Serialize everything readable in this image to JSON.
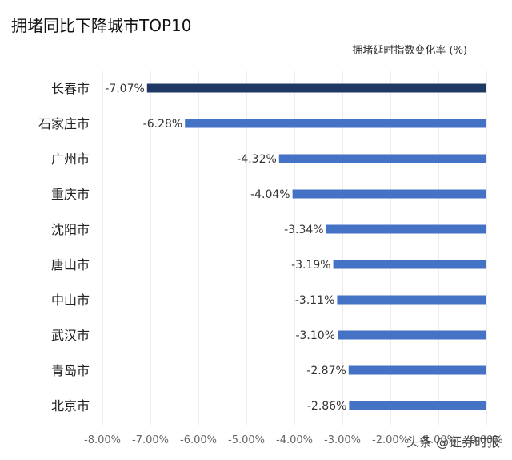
{
  "title": "拥堵同比下降城市TOP10",
  "subtitle": "拥堵延时指数变化率 (%)",
  "watermark": "头条 @证券时报",
  "chart_data": {
    "type": "bar",
    "orientation": "horizontal",
    "categories": [
      "长春市",
      "石家庄市",
      "广州市",
      "重庆市",
      "沈阳市",
      "唐山市",
      "中山市",
      "武汉市",
      "青岛市",
      "北京市"
    ],
    "values": [
      -7.07,
      -6.28,
      -4.32,
      -4.04,
      -3.34,
      -3.19,
      -3.11,
      -3.1,
      -2.87,
      -2.86
    ],
    "labels": [
      "-7.07%",
      "-6.28%",
      "-4.32%",
      "-4.04%",
      "-3.34%",
      "-3.19%",
      "-3.11%",
      "-3.10%",
      "-2.87%",
      "-2.86%"
    ],
    "xlim": [
      -8,
      0
    ],
    "xticks": [
      "-8.00%",
      "-7.00%",
      "-6.00%",
      "-5.00%",
      "-4.00%",
      "-3.00%",
      "-2.00%",
      "-1.00%",
      "0.00%"
    ],
    "grid": true,
    "colors": {
      "highlight": "#1f3864",
      "bar": "#4472c4",
      "grid": "#d9d9d9"
    }
  }
}
